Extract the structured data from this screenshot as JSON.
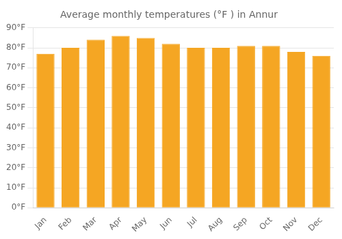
{
  "chart_data": {
    "type": "bar",
    "title": "Average monthly temperatures (°F ) in Annur",
    "categories": [
      "Jan",
      "Feb",
      "Mar",
      "Apr",
      "May",
      "Jun",
      "Jul",
      "Aug",
      "Sep",
      "Oct",
      "Nov",
      "Dec"
    ],
    "values": [
      77,
      80,
      84,
      86,
      85,
      82,
      80,
      80,
      81,
      81,
      78,
      76
    ],
    "color": "#F5A623",
    "ylim": [
      0,
      90
    ],
    "yticks": [
      {
        "value": 0,
        "label": "0°F"
      },
      {
        "value": 10,
        "label": "10°F"
      },
      {
        "value": 20,
        "label": "20°F"
      },
      {
        "value": 30,
        "label": "30°F"
      },
      {
        "value": 40,
        "label": "40°F"
      },
      {
        "value": 50,
        "label": "50°F"
      },
      {
        "value": 60,
        "label": "60°F"
      },
      {
        "value": 70,
        "label": "70°F"
      },
      {
        "value": 80,
        "label": "80°F"
      },
      {
        "value": 90,
        "label": "90°F"
      }
    ],
    "grid": true
  }
}
